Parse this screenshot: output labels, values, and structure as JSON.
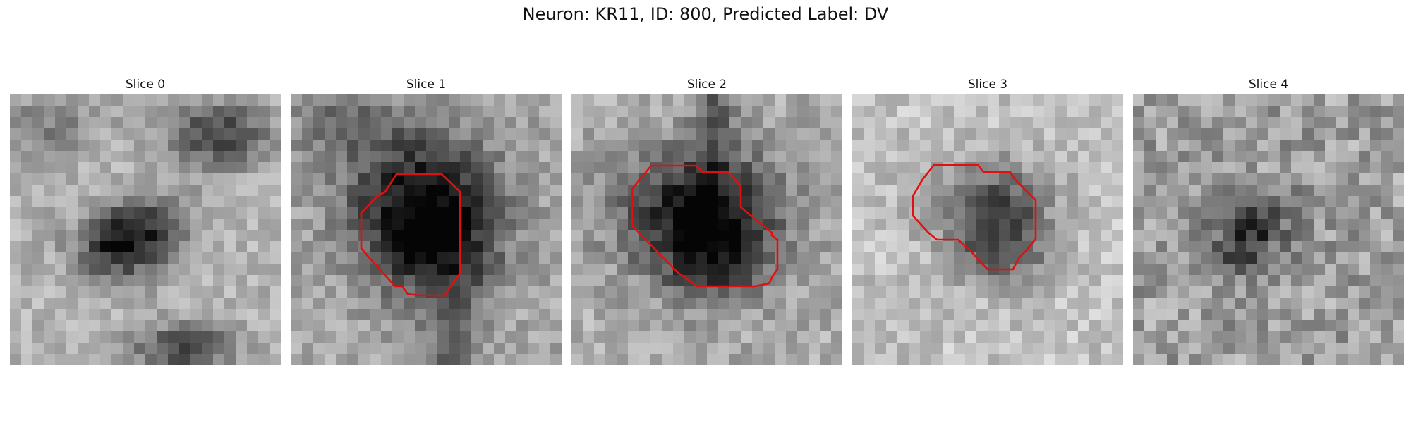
{
  "figure": {
    "title": "Neuron: KR11, ID: 800, Predicted Label: DV"
  },
  "colors": {
    "contour": "#e01010",
    "background": "#ffffff"
  },
  "panels": [
    {
      "title": "Slice 0",
      "has_contour": false
    },
    {
      "title": "Slice 1",
      "has_contour": true
    },
    {
      "title": "Slice 2",
      "has_contour": true
    },
    {
      "title": "Slice 3",
      "has_contour": true
    },
    {
      "title": "Slice 4",
      "has_contour": false
    }
  ]
}
